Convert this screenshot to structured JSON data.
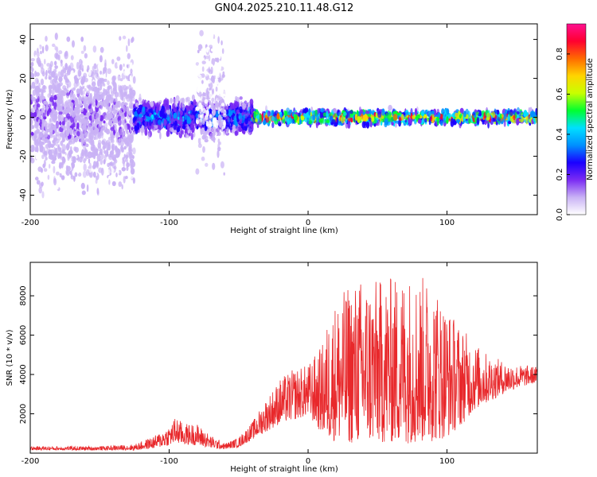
{
  "title": "GN04.2025.210.11.48.G12",
  "colors": {
    "snr_line": "#e8282b",
    "frame": "#000000"
  },
  "chart_data": [
    {
      "type": "heatmap",
      "xlabel": "Height of straight line (km)",
      "ylabel": "Frequency (Hz)",
      "xlim": [
        -200,
        165
      ],
      "ylim": [
        -50,
        48
      ],
      "xticks": [
        "-200",
        "-100",
        "0",
        "100"
      ],
      "yticks": [
        "-40",
        "-20",
        "0",
        "20",
        "40"
      ],
      "colorbar": {
        "label": "Normalized spectral amplitude",
        "range": [
          0.0,
          0.95
        ],
        "ticks": [
          "0.0",
          "0.2",
          "0.4",
          "0.6",
          "0.8"
        ],
        "colormap": [
          "#ffffff",
          "#c9b2f5",
          "#7b2cf3",
          "#1a00ff",
          "#0090ff",
          "#00e0ff",
          "#00ff30",
          "#c8ff00",
          "#ffd400",
          "#ff6a00",
          "#ff0030",
          "#ff1090"
        ]
      },
      "segments": [
        {
          "x": [
            -200,
            -125
          ],
          "center_hz": 0,
          "spread_hz": 50,
          "density": "high",
          "amplitude": 0.15
        },
        {
          "x": [
            -125,
            -40
          ],
          "center_hz": 0,
          "spread_hz": 12,
          "density": "high",
          "amplitude": 0.4
        },
        {
          "x": [
            -80,
            -60
          ],
          "center_hz": 10,
          "spread_hz": 45,
          "density": "low",
          "amplitude": 0.05
        },
        {
          "x": [
            -40,
            165
          ],
          "center_hz": 0,
          "spread_hz": 5,
          "density": "high",
          "amplitude": 0.75
        }
      ]
    },
    {
      "type": "line",
      "xlabel": "Height of straight line (km)",
      "ylabel": "SNR (10 * v/v)",
      "xlim": [
        -200,
        165
      ],
      "ylim": [
        0,
        9700
      ],
      "xticks": [
        "-200",
        "-100",
        "0",
        "100"
      ],
      "yticks": [
        "2000",
        "4000",
        "6000",
        "8000"
      ],
      "envelope": {
        "x": [
          -200,
          -150,
          -125,
          -110,
          -100,
          -95,
          -90,
          -80,
          -70,
          -60,
          -50,
          -40,
          -30,
          -20,
          -10,
          0,
          10,
          15,
          20,
          30,
          40,
          50,
          60,
          70,
          80,
          90,
          100,
          110,
          120,
          130,
          140,
          150,
          165
        ],
        "low": [
          150,
          150,
          150,
          250,
          400,
          500,
          450,
          400,
          250,
          200,
          300,
          700,
          1100,
          1500,
          1700,
          1900,
          1000,
          700,
          600,
          500,
          500,
          500,
          500,
          500,
          500,
          600,
          800,
          1400,
          2200,
          2600,
          3000,
          3300,
          3600
        ],
        "high": [
          350,
          350,
          450,
          900,
          1400,
          1900,
          1500,
          1500,
          900,
          500,
          800,
          1600,
          2800,
          3800,
          4300,
          4500,
          5500,
          7000,
          7800,
          8600,
          9000,
          8800,
          9000,
          9200,
          9100,
          8800,
          7500,
          6500,
          5600,
          5000,
          4700,
          4500,
          4400
        ]
      }
    }
  ]
}
